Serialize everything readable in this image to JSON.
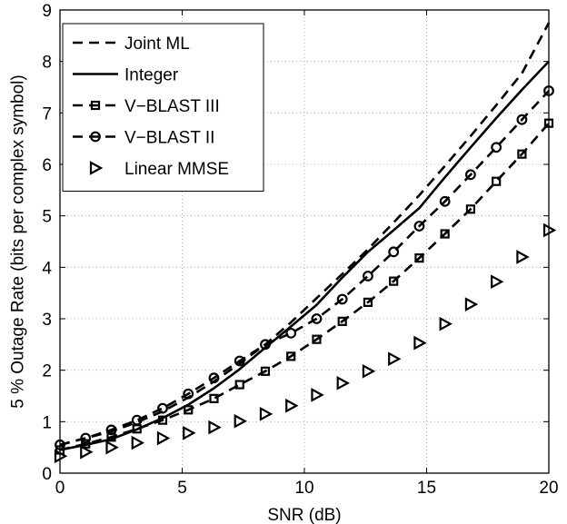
{
  "chart_data": {
    "type": "line",
    "title": "",
    "xlabel": "SNR (dB)",
    "ylabel": "5 % Outage Rate (bits per complex symbol)",
    "xlim": [
      0,
      20
    ],
    "ylim": [
      0,
      9
    ],
    "xticks": [
      0,
      5,
      10,
      15,
      20
    ],
    "yticks": [
      0,
      1,
      2,
      3,
      4,
      5,
      6,
      7,
      8,
      9
    ],
    "grid": true,
    "legend_position": "top-left",
    "series": [
      {
        "name": "Joint ML",
        "line": "dashed",
        "marker": "none",
        "x": [
          0,
          1.05,
          2.1,
          3.15,
          4.2,
          5.25,
          6.3,
          7.35,
          8.4,
          9.45,
          10.5,
          11.55,
          12.6,
          13.65,
          14.7,
          15.75,
          16.8,
          17.85,
          18.9,
          20
        ],
        "y": [
          0.55,
          0.68,
          0.81,
          0.99,
          1.2,
          1.47,
          1.78,
          2.13,
          2.5,
          2.93,
          3.4,
          3.87,
          4.35,
          4.87,
          5.4,
          5.97,
          6.55,
          7.15,
          7.77,
          8.75
        ]
      },
      {
        "name": "Integer",
        "line": "solid",
        "marker": "none",
        "x": [
          0,
          1.05,
          2.1,
          3.15,
          4.2,
          5.25,
          6.3,
          7.35,
          8.4,
          9.45,
          10.5,
          11.55,
          12.6,
          13.65,
          14.7,
          15.75,
          16.8,
          17.85,
          18.9,
          20
        ],
        "y": [
          0.45,
          0.55,
          0.66,
          0.85,
          1.07,
          1.33,
          1.65,
          2.02,
          2.44,
          2.85,
          3.27,
          3.8,
          4.3,
          4.72,
          5.15,
          5.75,
          6.33,
          6.9,
          7.45,
          8.0
        ]
      },
      {
        "name": "V−BLAST III",
        "line": "dashed",
        "marker": "square",
        "x": [
          0,
          1.05,
          2.1,
          3.15,
          4.2,
          5.25,
          6.3,
          7.35,
          8.4,
          9.45,
          10.5,
          11.55,
          12.6,
          13.65,
          14.7,
          15.75,
          16.8,
          17.85,
          18.9,
          20
        ],
        "y": [
          0.45,
          0.57,
          0.7,
          0.86,
          1.03,
          1.23,
          1.45,
          1.72,
          1.98,
          2.27,
          2.6,
          2.95,
          3.32,
          3.73,
          4.18,
          4.65,
          5.13,
          5.67,
          6.2,
          6.8
        ]
      },
      {
        "name": "V−BLAST II",
        "line": "dashed",
        "marker": "circle",
        "x": [
          0,
          1.05,
          2.1,
          3.15,
          4.2,
          5.25,
          6.3,
          7.35,
          8.4,
          9.45,
          10.5,
          11.55,
          12.6,
          13.65,
          14.7,
          15.75,
          16.8,
          17.85,
          18.9,
          20
        ],
        "y": [
          0.55,
          0.68,
          0.84,
          1.03,
          1.26,
          1.54,
          1.85,
          2.18,
          2.5,
          2.72,
          3.0,
          3.38,
          3.83,
          4.3,
          4.8,
          5.28,
          5.8,
          6.33,
          6.87,
          7.43
        ]
      },
      {
        "name": "Linear MMSE",
        "line": "none",
        "marker": "triangle-right",
        "x": [
          0,
          1.05,
          2.1,
          3.15,
          4.2,
          5.25,
          6.3,
          7.35,
          8.4,
          9.45,
          10.5,
          11.55,
          12.6,
          13.65,
          14.7,
          15.75,
          16.8,
          17.85,
          18.9,
          20
        ],
        "y": [
          0.33,
          0.41,
          0.5,
          0.59,
          0.68,
          0.78,
          0.89,
          1.01,
          1.15,
          1.31,
          1.52,
          1.75,
          1.98,
          2.22,
          2.53,
          2.9,
          3.28,
          3.72,
          4.2,
          4.72
        ]
      }
    ]
  }
}
